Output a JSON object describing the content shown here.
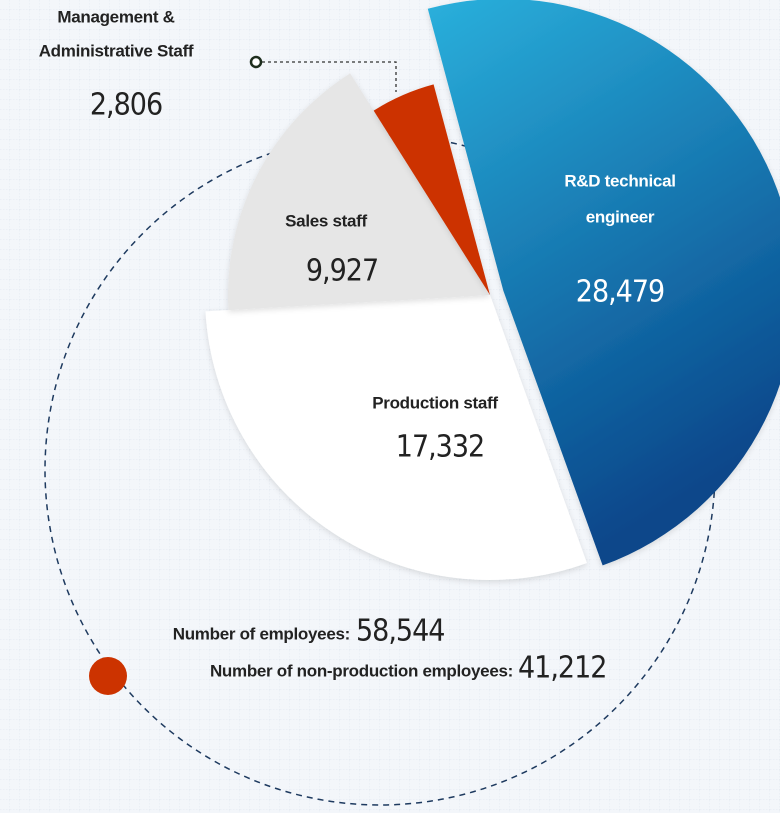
{
  "chart_data": {
    "type": "pie",
    "categories": [
      [
        "R&D technical",
        "engineer"
      ],
      [
        "Production staff"
      ],
      [
        "Sales staff"
      ],
      [
        "Management &",
        "Administrative Staff"
      ]
    ],
    "values": [
      28479,
      17332,
      9927,
      2806
    ],
    "value_labels": [
      "28,479",
      "17,332",
      "9,927",
      "2,806"
    ],
    "colors": [
      "#2ab0dc",
      "#ffffff",
      "#e6e6e6",
      "#cc3300"
    ],
    "annotations": [
      {
        "label": "Number of employees:",
        "value": "58,544"
      },
      {
        "label": "Number of non-production employees:",
        "value": "41,212"
      }
    ]
  }
}
